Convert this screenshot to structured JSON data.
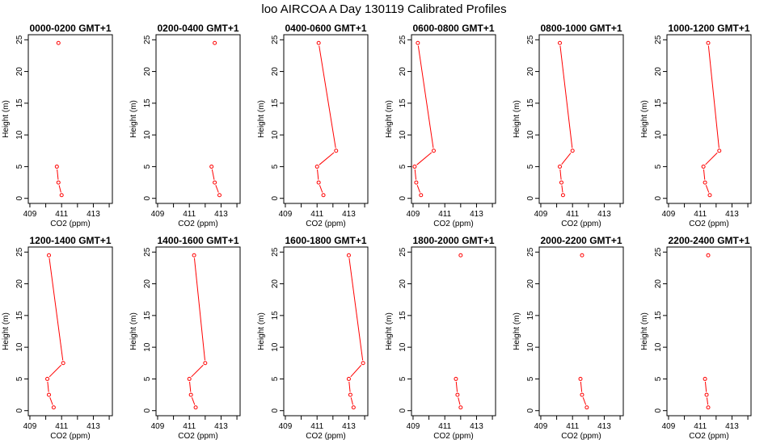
{
  "figure": {
    "title": "loo AIRCOA A  Day 130119  Calibrated Profiles"
  },
  "colors": {
    "series": "#ff0000",
    "axis": "#000000",
    "background": "#ffffff"
  },
  "chart_data": {
    "type": "line",
    "layout": "2 rows x 6 panels",
    "xlabel": "CO2 (ppm)",
    "ylabel": "Height (m)",
    "xlim": [
      408.9,
      414.2
    ],
    "ylim": [
      -0.8,
      25.8
    ],
    "xticks": [
      409,
      410,
      411,
      412,
      413,
      414
    ],
    "xtick_labels": [
      "409",
      "",
      "411",
      "",
      "413",
      ""
    ],
    "yticks": [
      0,
      5,
      10,
      15,
      20,
      25
    ],
    "ytick_labels": [
      "0",
      "5",
      "10",
      "15",
      "20",
      "25"
    ],
    "grid": false,
    "panels": [
      {
        "title": "0000-0200 GMT+1",
        "connected": false,
        "points": [
          {
            "x": 410.8,
            "y": 24.5
          },
          {
            "x": 410.7,
            "y": 5.0
          },
          {
            "x": 410.8,
            "y": 2.5
          },
          {
            "x": 411.0,
            "y": 0.5
          }
        ]
      },
      {
        "title": "0200-0400 GMT+1",
        "connected": false,
        "points": [
          {
            "x": 412.6,
            "y": 24.5
          },
          {
            "x": 412.4,
            "y": 5.0
          },
          {
            "x": 412.6,
            "y": 2.5
          },
          {
            "x": 412.9,
            "y": 0.5
          }
        ]
      },
      {
        "title": "0400-0600 GMT+1",
        "connected": true,
        "points": [
          {
            "x": 411.1,
            "y": 24.5
          },
          {
            "x": 412.2,
            "y": 7.5
          },
          {
            "x": 411.0,
            "y": 5.0
          },
          {
            "x": 411.1,
            "y": 2.5
          },
          {
            "x": 411.4,
            "y": 0.5
          }
        ]
      },
      {
        "title": "0600-0800 GMT+1",
        "connected": true,
        "points": [
          {
            "x": 409.3,
            "y": 24.5
          },
          {
            "x": 410.3,
            "y": 7.5
          },
          {
            "x": 409.1,
            "y": 5.0
          },
          {
            "x": 409.2,
            "y": 2.5
          },
          {
            "x": 409.5,
            "y": 0.5
          }
        ]
      },
      {
        "title": "0800-1000 GMT+1",
        "connected": true,
        "points": [
          {
            "x": 410.2,
            "y": 24.5
          },
          {
            "x": 411.0,
            "y": 7.5
          },
          {
            "x": 410.2,
            "y": 5.0
          },
          {
            "x": 410.3,
            "y": 2.5
          },
          {
            "x": 410.4,
            "y": 0.5
          }
        ]
      },
      {
        "title": "1000-1200 GMT+1",
        "connected": true,
        "points": [
          {
            "x": 411.5,
            "y": 24.5
          },
          {
            "x": 412.2,
            "y": 7.5
          },
          {
            "x": 411.2,
            "y": 5.0
          },
          {
            "x": 411.3,
            "y": 2.5
          },
          {
            "x": 411.6,
            "y": 0.5
          }
        ]
      },
      {
        "title": "1200-1400 GMT+1",
        "connected": true,
        "points": [
          {
            "x": 410.2,
            "y": 24.5
          },
          {
            "x": 411.1,
            "y": 7.5
          },
          {
            "x": 410.1,
            "y": 5.0
          },
          {
            "x": 410.2,
            "y": 2.5
          },
          {
            "x": 410.5,
            "y": 0.5
          }
        ]
      },
      {
        "title": "1400-1600 GMT+1",
        "connected": true,
        "points": [
          {
            "x": 411.3,
            "y": 24.5
          },
          {
            "x": 412.0,
            "y": 7.5
          },
          {
            "x": 411.0,
            "y": 5.0
          },
          {
            "x": 411.1,
            "y": 2.5
          },
          {
            "x": 411.4,
            "y": 0.5
          }
        ]
      },
      {
        "title": "1600-1800 GMT+1",
        "connected": true,
        "points": [
          {
            "x": 413.0,
            "y": 24.5
          },
          {
            "x": 413.9,
            "y": 7.5
          },
          {
            "x": 413.0,
            "y": 5.0
          },
          {
            "x": 413.1,
            "y": 2.5
          },
          {
            "x": 413.3,
            "y": 0.5
          }
        ]
      },
      {
        "title": "1800-2000 GMT+1",
        "connected": false,
        "points": [
          {
            "x": 412.0,
            "y": 24.5
          },
          {
            "x": 411.7,
            "y": 5.0
          },
          {
            "x": 411.8,
            "y": 2.5
          },
          {
            "x": 412.0,
            "y": 0.5
          }
        ]
      },
      {
        "title": "2000-2200 GMT+1",
        "connected": false,
        "points": [
          {
            "x": 411.6,
            "y": 24.5
          },
          {
            "x": 411.5,
            "y": 5.0
          },
          {
            "x": 411.6,
            "y": 2.5
          },
          {
            "x": 411.9,
            "y": 0.5
          }
        ]
      },
      {
        "title": "2200-2400 GMT+1",
        "connected": false,
        "points": [
          {
            "x": 411.5,
            "y": 24.5
          },
          {
            "x": 411.3,
            "y": 5.0
          },
          {
            "x": 411.4,
            "y": 2.5
          },
          {
            "x": 411.5,
            "y": 0.5
          }
        ]
      }
    ]
  }
}
